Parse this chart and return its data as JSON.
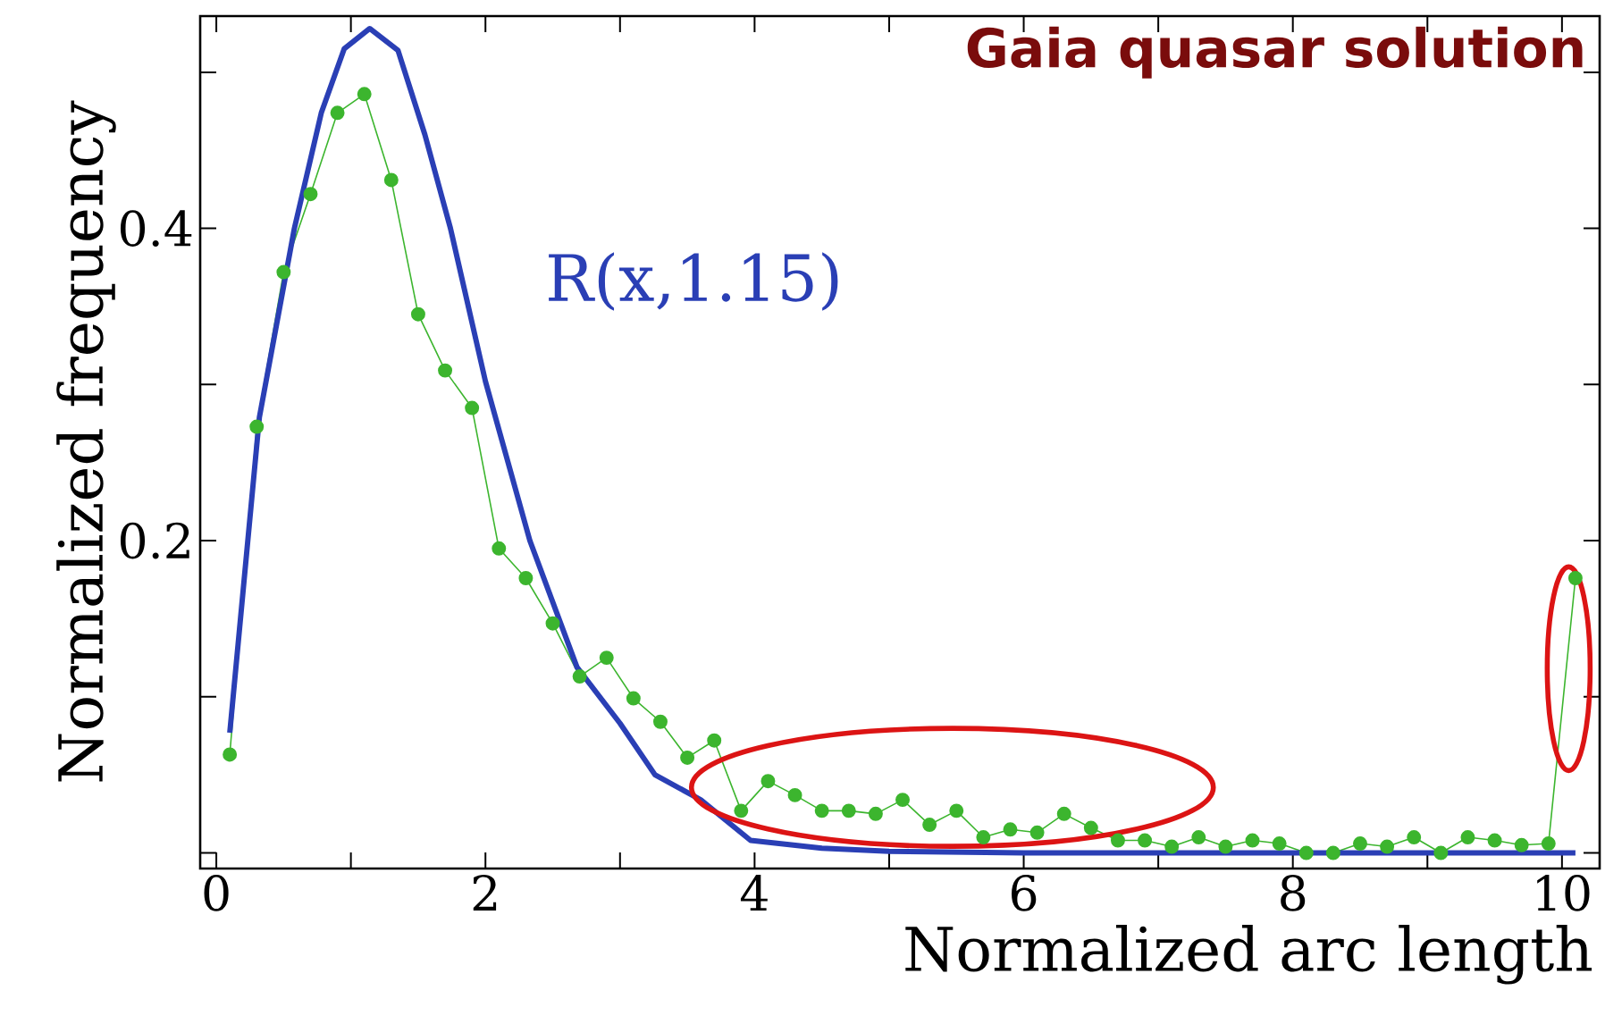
{
  "chart_data": {
    "type": "line",
    "title": "Gaia quasar solution",
    "xlabel": "Normalized arc length",
    "ylabel": "Normalized frequency",
    "xlim": [
      -0.12,
      10.28
    ],
    "ylim": [
      -0.01,
      0.536
    ],
    "xticks": [
      0,
      {
        "value": 1,
        "label": null
      },
      2,
      {
        "value": 3,
        "label": null
      },
      4,
      {
        "value": 5,
        "label": null
      },
      6,
      {
        "value": 7,
        "label": null
      },
      8,
      {
        "value": 9,
        "label": null
      },
      10
    ],
    "yticks": [
      {
        "value": 0,
        "label": null
      },
      {
        "value": 0.1,
        "label": null
      },
      0.2,
      {
        "value": 0.3,
        "label": null
      },
      0.4,
      {
        "value": 0.5,
        "label": null
      }
    ],
    "series": [
      {
        "color": "#3cb52e",
        "marker": "circle",
        "x": [
          0.1,
          0.3,
          0.5,
          0.7,
          0.9,
          1.1,
          1.3,
          1.5,
          1.7,
          1.9,
          2.1,
          2.3,
          2.5,
          2.7,
          2.9,
          3.1,
          3.3,
          3.5,
          3.7,
          3.9,
          4.1,
          4.3,
          4.5,
          4.7,
          4.9,
          5.1,
          5.3,
          5.5,
          5.7,
          5.9,
          6.1,
          6.3,
          6.5,
          6.7,
          6.9,
          7.1,
          7.3,
          7.5,
          7.7,
          7.9,
          8.1,
          8.3,
          8.5,
          8.7,
          8.9,
          9.1,
          9.3,
          9.5,
          9.7,
          9.9,
          10.1
        ],
        "values": [
          0.063,
          0.273,
          0.372,
          0.422,
          0.474,
          0.486,
          0.431,
          0.345,
          0.309,
          0.285,
          0.195,
          0.176,
          0.147,
          0.113,
          0.125,
          0.099,
          0.084,
          0.061,
          0.072,
          0.027,
          0.046,
          0.037,
          0.027,
          0.027,
          0.025,
          0.034,
          0.018,
          0.027,
          0.01,
          0.015,
          0.013,
          0.025,
          0.016,
          0.008,
          0.008,
          0.004,
          0.01,
          0.004,
          0.008,
          0.006,
          0.0,
          0.0,
          0.006,
          0.004,
          0.01,
          0.0,
          0.01,
          0.008,
          0.005,
          0.006,
          0.176
        ]
      },
      {
        "name": "R(x,1.15)",
        "color": "#2a3fb5",
        "marker": "none",
        "x": [
          0.1,
          0.32,
          0.58,
          0.78,
          0.95,
          1.14,
          1.35,
          1.55,
          1.74,
          2.0,
          2.33,
          2.68,
          3.0,
          3.26,
          3.6,
          3.97,
          4.5,
          5.0,
          6.0,
          8.0,
          10.1
        ],
        "values": [
          0.077,
          0.279,
          0.4,
          0.474,
          0.515,
          0.528,
          0.514,
          0.46,
          0.4,
          0.302,
          0.2,
          0.119,
          0.083,
          0.05,
          0.034,
          0.008,
          0.003,
          0.001,
          0.0,
          0.0,
          0.0
        ]
      }
    ]
  }
}
